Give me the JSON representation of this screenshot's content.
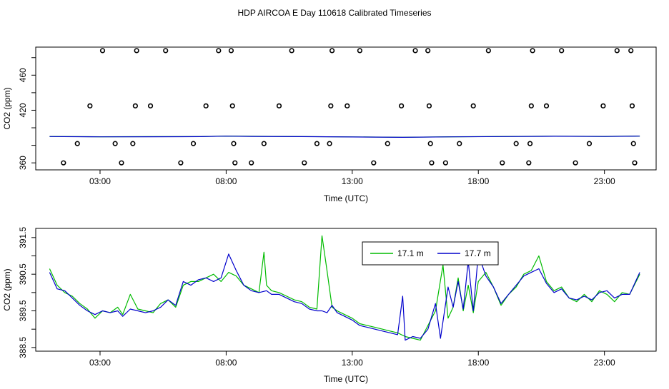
{
  "figure": {
    "title": "HDP AIRCOA E  Day 110618  Calibrated Timeseries"
  },
  "colors": {
    "series_green": "#00bb00",
    "series_blue": "#0000cc",
    "axis": "#000000"
  },
  "chart_data": [
    {
      "type": "scatter",
      "title": "",
      "xlabel": "Time (UTC)",
      "ylabel": "CO2 (ppm)",
      "xlim": [
        0.45,
        25.05
      ],
      "ylim": [
        352,
        492
      ],
      "x_ticks": [
        3,
        8,
        13,
        18,
        23
      ],
      "x_tick_labels": [
        "03:00",
        "08:00",
        "13:00",
        "18:00",
        "23:00"
      ],
      "y_ticks": [
        360,
        380,
        400,
        420,
        440,
        460,
        480
      ],
      "y_tick_labels": [
        "360",
        "",
        "",
        "420",
        "",
        "460",
        ""
      ],
      "grid": false,
      "points": [
        {
          "x": 1.55,
          "y": 360
        },
        {
          "x": 2.1,
          "y": 382
        },
        {
          "x": 2.6,
          "y": 425
        },
        {
          "x": 3.1,
          "y": 488
        },
        {
          "x": 3.6,
          "y": 382
        },
        {
          "x": 3.85,
          "y": 360
        },
        {
          "x": 4.3,
          "y": 382
        },
        {
          "x": 4.4,
          "y": 425
        },
        {
          "x": 4.45,
          "y": 488
        },
        {
          "x": 5.0,
          "y": 425
        },
        {
          "x": 5.6,
          "y": 488
        },
        {
          "x": 6.2,
          "y": 360
        },
        {
          "x": 6.7,
          "y": 382
        },
        {
          "x": 7.2,
          "y": 425
        },
        {
          "x": 7.7,
          "y": 488
        },
        {
          "x": 8.2,
          "y": 488
        },
        {
          "x": 8.25,
          "y": 425
        },
        {
          "x": 8.3,
          "y": 382
        },
        {
          "x": 8.35,
          "y": 360
        },
        {
          "x": 9.0,
          "y": 360
        },
        {
          "x": 9.5,
          "y": 382
        },
        {
          "x": 10.1,
          "y": 425
        },
        {
          "x": 10.6,
          "y": 488
        },
        {
          "x": 11.1,
          "y": 360
        },
        {
          "x": 11.6,
          "y": 382
        },
        {
          "x": 12.1,
          "y": 382
        },
        {
          "x": 12.15,
          "y": 425
        },
        {
          "x": 12.2,
          "y": 488
        },
        {
          "x": 12.8,
          "y": 425
        },
        {
          "x": 13.3,
          "y": 488
        },
        {
          "x": 13.85,
          "y": 360
        },
        {
          "x": 14.4,
          "y": 382
        },
        {
          "x": 14.95,
          "y": 425
        },
        {
          "x": 15.5,
          "y": 488
        },
        {
          "x": 16.0,
          "y": 488
        },
        {
          "x": 16.05,
          "y": 425
        },
        {
          "x": 16.1,
          "y": 382
        },
        {
          "x": 16.15,
          "y": 360
        },
        {
          "x": 16.7,
          "y": 360
        },
        {
          "x": 17.25,
          "y": 382
        },
        {
          "x": 17.8,
          "y": 425
        },
        {
          "x": 18.4,
          "y": 488
        },
        {
          "x": 18.95,
          "y": 360
        },
        {
          "x": 19.5,
          "y": 382
        },
        {
          "x": 20.0,
          "y": 360
        },
        {
          "x": 20.05,
          "y": 382
        },
        {
          "x": 20.1,
          "y": 425
        },
        {
          "x": 20.15,
          "y": 488
        },
        {
          "x": 20.7,
          "y": 425
        },
        {
          "x": 21.3,
          "y": 488
        },
        {
          "x": 21.85,
          "y": 360
        },
        {
          "x": 22.4,
          "y": 382
        },
        {
          "x": 22.95,
          "y": 425
        },
        {
          "x": 23.5,
          "y": 488
        },
        {
          "x": 24.05,
          "y": 488
        },
        {
          "x": 24.1,
          "y": 425
        },
        {
          "x": 24.15,
          "y": 382
        },
        {
          "x": 24.2,
          "y": 360
        }
      ],
      "series": [
        {
          "color": "#00bb00",
          "x": [
            1.0,
            3.0,
            5.0,
            7.0,
            8.0,
            9.0,
            11.0,
            13.0,
            15.0,
            17.0,
            19.0,
            21.0,
            23.0,
            24.4
          ],
          "values": [
            390.1,
            389.8,
            389.9,
            390.0,
            390.6,
            390.3,
            390.0,
            389.6,
            389.2,
            389.8,
            390.1,
            390.4,
            390.2,
            390.6
          ]
        },
        {
          "color": "#0000cc",
          "x": [
            1.0,
            3.0,
            5.0,
            7.0,
            8.0,
            9.0,
            11.0,
            13.0,
            15.0,
            17.0,
            19.0,
            21.0,
            23.0,
            24.4
          ],
          "values": [
            390.0,
            389.7,
            389.8,
            389.9,
            390.5,
            390.2,
            389.9,
            389.5,
            389.1,
            389.7,
            390.0,
            390.3,
            390.1,
            390.5
          ]
        }
      ]
    },
    {
      "type": "line",
      "title": "",
      "xlabel": "Time (UTC)",
      "ylabel": "CO2 (ppm)",
      "xlim": [
        0.45,
        25.05
      ],
      "ylim": [
        388.4,
        391.75
      ],
      "x_ticks": [
        3,
        8,
        13,
        18,
        23
      ],
      "x_tick_labels": [
        "03:00",
        "08:00",
        "13:00",
        "18:00",
        "23:00"
      ],
      "y_ticks": [
        388.5,
        389.0,
        389.5,
        390.0,
        390.5,
        391.0,
        391.5
      ],
      "y_tick_labels": [
        "388.5",
        "",
        "389.5",
        "",
        "390.5",
        "",
        "391.5"
      ],
      "grid": false,
      "legend_position": "top-center",
      "series": [
        {
          "name": "17.1 m",
          "color": "#00bb00",
          "x": [
            1.0,
            1.3,
            1.6,
            1.9,
            2.2,
            2.5,
            2.8,
            3.1,
            3.4,
            3.7,
            3.9,
            4.2,
            4.5,
            4.8,
            5.1,
            5.4,
            5.7,
            6.0,
            6.3,
            6.6,
            6.9,
            7.2,
            7.5,
            7.8,
            8.1,
            8.4,
            8.7,
            9.0,
            9.3,
            9.5,
            9.6,
            9.8,
            10.1,
            10.4,
            10.7,
            11.0,
            11.3,
            11.6,
            11.8,
            12.0,
            12.2,
            12.4,
            12.7,
            13.0,
            13.3,
            13.6,
            13.9,
            14.2,
            14.5,
            14.8,
            15.1,
            15.4,
            15.7,
            16.0,
            16.3,
            16.6,
            16.8,
            17.0,
            17.2,
            17.4,
            17.6,
            17.8,
            18.0,
            18.3,
            18.6,
            18.9,
            19.2,
            19.5,
            19.8,
            20.1,
            20.4,
            20.7,
            21.0,
            21.3,
            21.6,
            21.9,
            22.2,
            22.5,
            22.8,
            23.1,
            23.4,
            23.7,
            24.0,
            24.4
          ],
          "values": [
            390.65,
            390.2,
            390.0,
            389.9,
            389.7,
            389.55,
            389.3,
            389.5,
            389.45,
            389.6,
            389.4,
            389.95,
            389.55,
            389.5,
            389.45,
            389.7,
            389.8,
            389.6,
            390.2,
            390.3,
            390.3,
            390.4,
            390.5,
            390.3,
            390.55,
            390.45,
            390.2,
            390.1,
            390.0,
            391.1,
            390.2,
            390.05,
            390.0,
            389.9,
            389.8,
            389.75,
            389.6,
            389.55,
            391.55,
            390.6,
            389.6,
            389.5,
            389.4,
            389.3,
            389.15,
            389.1,
            389.05,
            389.0,
            388.95,
            388.9,
            388.8,
            388.75,
            388.7,
            389.1,
            389.5,
            390.75,
            389.3,
            389.6,
            390.4,
            389.5,
            390.2,
            389.45,
            390.3,
            390.55,
            390.15,
            389.65,
            389.95,
            390.15,
            390.5,
            390.6,
            391.0,
            390.3,
            390.05,
            390.15,
            389.85,
            389.75,
            389.95,
            389.75,
            390.05,
            389.95,
            389.75,
            390.0,
            389.95,
            390.5
          ]
        },
        {
          "name": "17.7 m",
          "color": "#0000cc",
          "x": [
            1.0,
            1.3,
            1.6,
            1.9,
            2.2,
            2.5,
            2.8,
            3.1,
            3.4,
            3.7,
            3.9,
            4.2,
            4.5,
            4.8,
            5.1,
            5.4,
            5.7,
            6.0,
            6.3,
            6.6,
            6.9,
            7.2,
            7.5,
            7.8,
            8.1,
            8.4,
            8.7,
            9.0,
            9.3,
            9.6,
            9.8,
            10.1,
            10.4,
            10.7,
            11.0,
            11.3,
            11.6,
            11.8,
            12.0,
            12.2,
            12.4,
            12.7,
            13.0,
            13.3,
            13.6,
            13.9,
            14.2,
            14.5,
            14.8,
            15.0,
            15.1,
            15.4,
            15.7,
            16.0,
            16.3,
            16.5,
            16.8,
            17.0,
            17.2,
            17.4,
            17.6,
            17.8,
            18.0,
            18.3,
            18.6,
            18.9,
            19.2,
            19.5,
            19.8,
            20.1,
            20.4,
            20.7,
            21.0,
            21.3,
            21.6,
            21.9,
            22.2,
            22.5,
            22.8,
            23.1,
            23.4,
            23.7,
            24.0,
            24.4
          ],
          "values": [
            390.55,
            390.1,
            390.05,
            389.85,
            389.65,
            389.5,
            389.4,
            389.5,
            389.45,
            389.5,
            389.35,
            389.55,
            389.5,
            389.45,
            389.5,
            389.6,
            389.8,
            389.65,
            390.3,
            390.2,
            390.35,
            390.4,
            390.3,
            390.4,
            391.05,
            390.6,
            390.2,
            390.05,
            390.0,
            390.05,
            389.95,
            389.95,
            389.85,
            389.75,
            389.7,
            389.55,
            389.5,
            389.5,
            389.45,
            389.65,
            389.45,
            389.35,
            389.25,
            389.1,
            389.05,
            389.0,
            388.95,
            388.9,
            388.85,
            389.9,
            388.7,
            388.8,
            388.75,
            389.0,
            389.7,
            388.75,
            390.15,
            389.6,
            390.3,
            389.55,
            390.85,
            389.5,
            391.05,
            390.45,
            390.15,
            389.7,
            389.95,
            390.2,
            390.45,
            390.55,
            390.65,
            390.25,
            390.0,
            390.1,
            389.85,
            389.8,
            389.9,
            389.8,
            390.0,
            390.05,
            389.85,
            389.95,
            389.95,
            390.55
          ]
        }
      ]
    }
  ]
}
